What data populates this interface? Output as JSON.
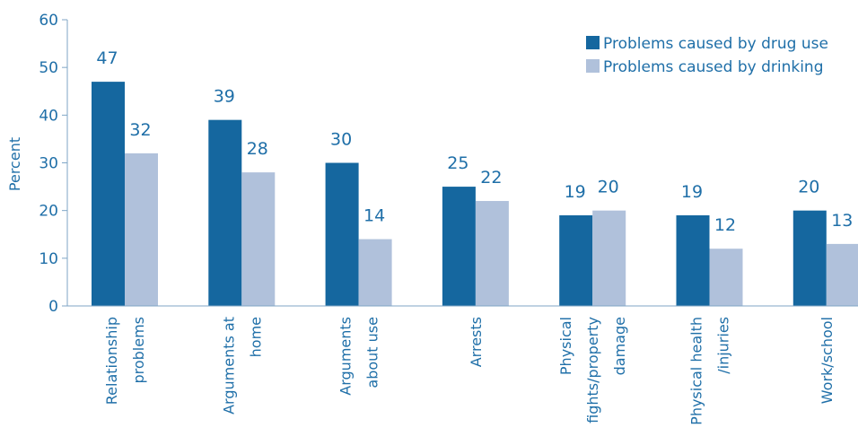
{
  "chart_data": {
    "type": "bar",
    "title": "",
    "xlabel": "",
    "ylabel": "Percent",
    "ylim": [
      0,
      60
    ],
    "yticks": [
      0,
      10,
      20,
      30,
      40,
      50,
      60
    ],
    "grid": false,
    "legend_position": "top-right",
    "categories": [
      [
        "Relationship",
        "problems"
      ],
      [
        "Arguments at",
        "home"
      ],
      [
        "Arguments",
        "about  use"
      ],
      [
        "Arrests"
      ],
      [
        "Physical",
        "fights/property",
        "damage"
      ],
      [
        "Physical health",
        "/injuries"
      ],
      [
        "Work/school"
      ]
    ],
    "series": [
      {
        "name": "Problems caused by drug use",
        "color": "#15679f",
        "values": [
          47,
          39,
          30,
          25,
          19,
          19,
          20
        ]
      },
      {
        "name": "Problems caused by drinking",
        "color": "#b0c1db",
        "values": [
          32,
          28,
          14,
          22,
          20,
          12,
          13
        ]
      }
    ]
  }
}
